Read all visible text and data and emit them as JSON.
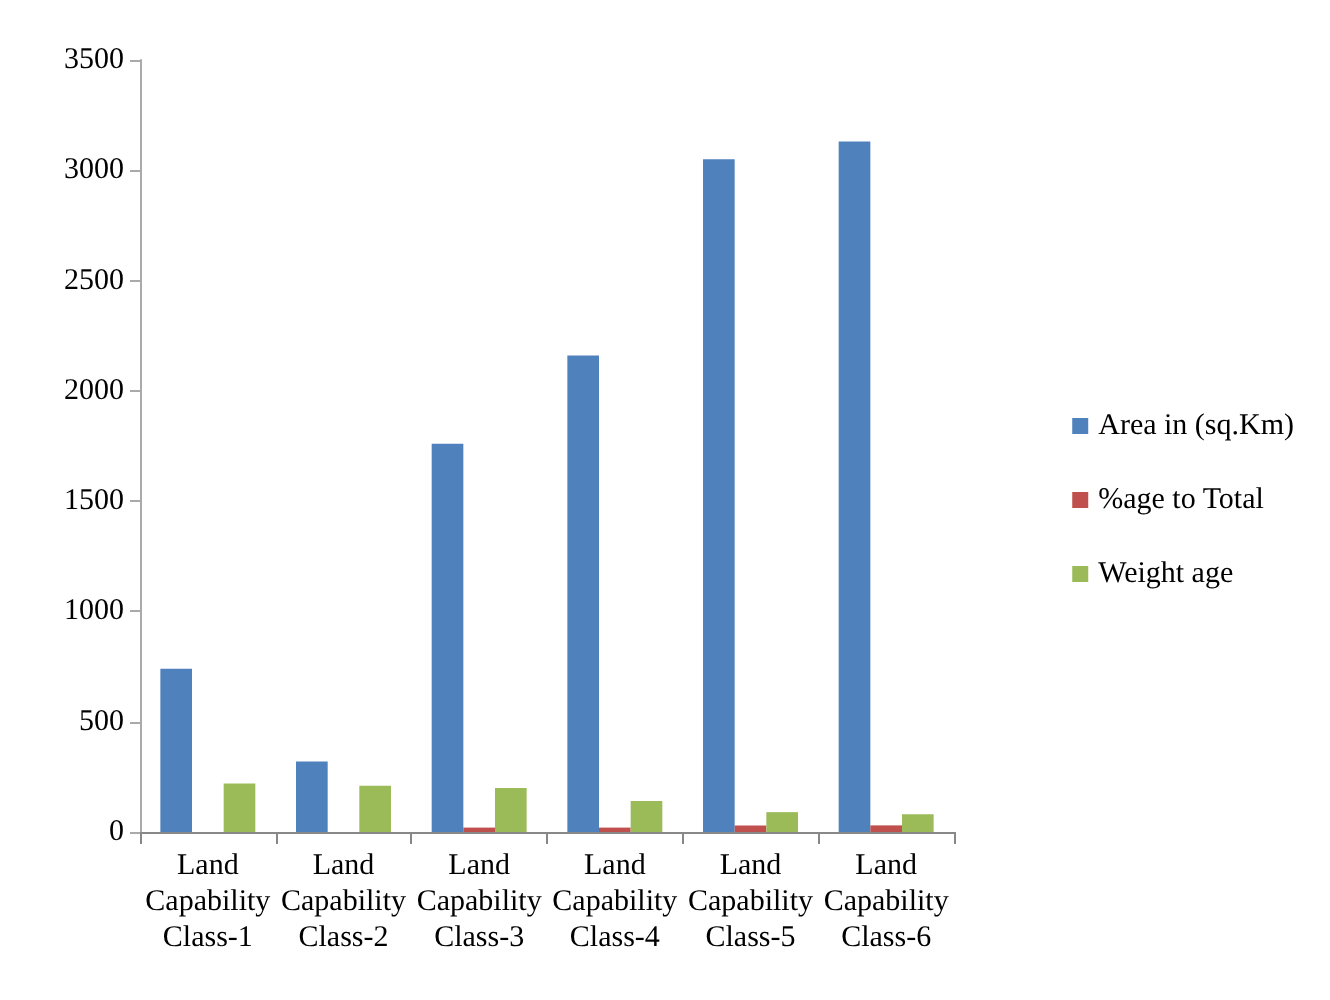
{
  "chart_data": {
    "type": "bar",
    "categories": [
      "Land Capability Class-1",
      "Land Capability Class-2",
      "Land Capability Class-3",
      "Land Capability Class-4",
      "Land Capability Class-5",
      "Land Capability Class-6"
    ],
    "series": [
      {
        "name": "Area in (sq.Km)",
        "color": "#4f81bd",
        "values": [
          740,
          320,
          1760,
          2160,
          3050,
          3130
        ]
      },
      {
        "name": "%age to Total",
        "color": "#c0504d",
        "values": [
          null,
          null,
          20,
          20,
          30,
          30
        ]
      },
      {
        "name": "Weight age",
        "color": "#9bbb59",
        "values": [
          220,
          210,
          200,
          140,
          90,
          80
        ]
      }
    ],
    "ylim": [
      0,
      3500
    ],
    "yticks": [
      0,
      500,
      1000,
      1500,
      2000,
      2500,
      3000,
      3500
    ],
    "grid": false,
    "legend": "right"
  }
}
